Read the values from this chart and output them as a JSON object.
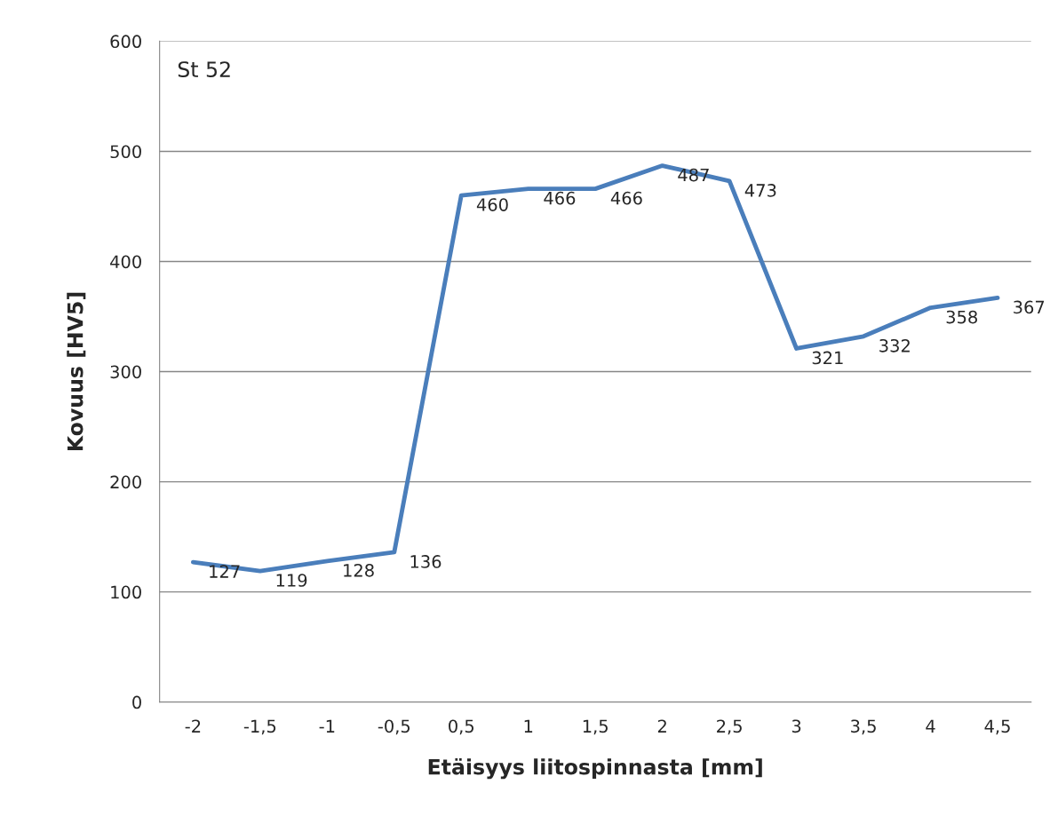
{
  "chart_data": {
    "type": "line",
    "xlabel": "Etäisyys liitospinnasta [mm]",
    "ylabel": "Kovuus [HV5]",
    "annotations": [
      "St 52"
    ],
    "categories": [
      "-2",
      "-1,5",
      "-1",
      "-0,5",
      "0,5",
      "1",
      "1,5",
      "2",
      "2,5",
      "3",
      "3,5",
      "4",
      "4,5"
    ],
    "series": [
      {
        "color": "#4a7ebb",
        "values": [
          127,
          119,
          128,
          136,
          460,
          466,
          466,
          487,
          473,
          321,
          332,
          358,
          367
        ]
      }
    ],
    "ylim": [
      0,
      600
    ],
    "yticks": [
      0,
      100,
      200,
      300,
      400,
      500,
      600
    ],
    "grid": "y",
    "data_labels": true,
    "marker": "none",
    "line_style": "solid"
  }
}
